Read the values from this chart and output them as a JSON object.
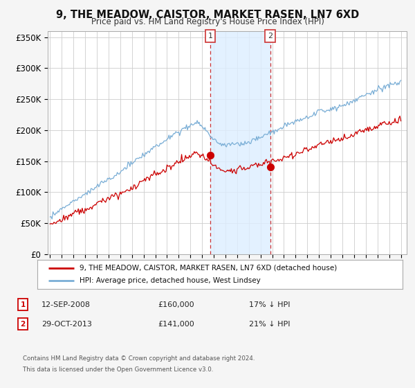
{
  "title": "9, THE MEADOW, CAISTOR, MARKET RASEN, LN7 6XD",
  "subtitle": "Price paid vs. HM Land Registry's House Price Index (HPI)",
  "ylabel_ticks": [
    "£0",
    "£50K",
    "£100K",
    "£150K",
    "£200K",
    "£250K",
    "£300K",
    "£350K"
  ],
  "ytick_values": [
    0,
    50000,
    100000,
    150000,
    200000,
    250000,
    300000,
    350000
  ],
  "ylim": [
    0,
    360000
  ],
  "xlim_start": 1994.8,
  "xlim_end": 2025.5,
  "sale1_year": 2008.7,
  "sale1_price": 160000,
  "sale1_label": "1",
  "sale1_date": "12-SEP-2008",
  "sale1_pct": "17% ↓ HPI",
  "sale2_year": 2013.83,
  "sale2_price": 141000,
  "sale2_label": "2",
  "sale2_date": "29-OCT-2013",
  "sale2_pct": "21% ↓ HPI",
  "hpi_color": "#7aaed6",
  "price_color": "#cc0000",
  "shade_color": "#ddeeff",
  "dashed_color": "#cc3333",
  "legend_price_label": "9, THE MEADOW, CAISTOR, MARKET RASEN, LN7 6XD (detached house)",
  "legend_hpi_label": "HPI: Average price, detached house, West Lindsey",
  "footer1": "Contains HM Land Registry data © Crown copyright and database right 2024.",
  "footer2": "This data is licensed under the Open Government Licence v3.0.",
  "background_color": "#f5f5f5",
  "plot_bg_color": "#ffffff",
  "grid_color": "#cccccc"
}
